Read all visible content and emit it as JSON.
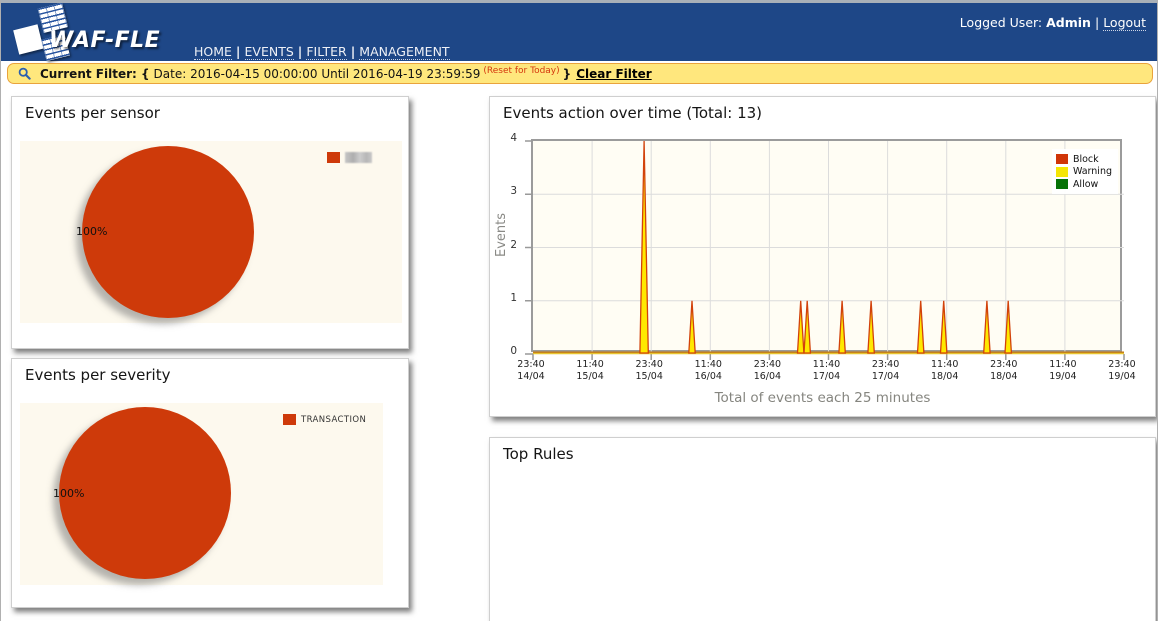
{
  "header": {
    "logo_text": "WAF-FLE",
    "nav_separator": "|",
    "nav": [
      {
        "label": "HOME"
      },
      {
        "label": "EVENTS"
      },
      {
        "label": "FILTER"
      },
      {
        "label": "MANAGEMENT"
      }
    ],
    "logged_user_label": "Logged User:",
    "logged_user_name": "Admin",
    "user_separator": "|",
    "logout_label": "Logout"
  },
  "filter_bar": {
    "icon": "search-icon",
    "prefix": "Current Filter: {",
    "date_text": "Date: 2016-04-15 00:00:00 Until 2016-04-19 23:59:59",
    "reset_note": "(Reset for Today)",
    "suffix": "}",
    "clear_label": "Clear Filter"
  },
  "panels": {
    "events_per_sensor": {
      "title": "Events per sensor",
      "percent_label": "100%",
      "legend": {
        "label": "",
        "label_censored": true,
        "color": "#ce3a0a"
      }
    },
    "events_per_severity": {
      "title": "Events per severity",
      "percent_label": "100%",
      "legend": {
        "label": "TRANSACTION",
        "color": "#ce3a0a"
      }
    },
    "events_action": {
      "title": "Events action over time (Total: 13)",
      "ylabel": "Events",
      "caption": "Total of events each 25 minutes"
    },
    "top_rules": {
      "title": "Top Rules"
    }
  },
  "colors": {
    "header_blue": "#1e4787",
    "filter_yellow": "#ffe77d",
    "filter_border_orange": "#e9a33c",
    "pie_red": "#ce3a0a",
    "block_red": "#d03508",
    "warning_yellow": "#f5e604",
    "allow_green": "#067206",
    "plot_bg_cream": "#fffdf4",
    "gridline_grey": "#dcdcdc"
  },
  "chart_data": [
    {
      "type": "pie",
      "title": "Events per sensor",
      "slices": [
        {
          "label": "",
          "label_censored": true,
          "value_pct": 100,
          "color": "#ce3a0a"
        }
      ],
      "data_label": "100%",
      "legend_position": "top-right"
    },
    {
      "type": "pie",
      "title": "Events per severity",
      "slices": [
        {
          "label": "TRANSACTION",
          "value_pct": 100,
          "color": "#ce3a0a"
        }
      ],
      "data_label": "100%",
      "legend_position": "top-right"
    },
    {
      "type": "area",
      "title": "Events action over time (Total: 13)",
      "total_events": 13,
      "ylabel": "Events",
      "xlabel_caption": "Total of events each 25 minutes",
      "ylim": [
        0,
        4
      ],
      "yticks": [
        0,
        1,
        2,
        3,
        4
      ],
      "grid": true,
      "legend_position": "top-right",
      "xticks": [
        {
          "time": "23:40",
          "date": "14/04"
        },
        {
          "time": "11:40",
          "date": "15/04"
        },
        {
          "time": "23:40",
          "date": "15/04"
        },
        {
          "time": "11:40",
          "date": "16/04"
        },
        {
          "time": "23:40",
          "date": "16/04"
        },
        {
          "time": "11:40",
          "date": "17/04"
        },
        {
          "time": "23:40",
          "date": "17/04"
        },
        {
          "time": "11:40",
          "date": "18/04"
        },
        {
          "time": "23:40",
          "date": "18/04"
        },
        {
          "time": "11:40",
          "date": "19/04"
        },
        {
          "time": "23:40",
          "date": "19/04"
        }
      ],
      "series": [
        {
          "name": "Block",
          "color": "#d03508"
        },
        {
          "name": "Warning",
          "color": "#f5e604"
        },
        {
          "name": "Allow",
          "color": "#067206"
        }
      ],
      "note": "Block (red outline) and Warning (yellow fill) spike together; Allow flat at 0",
      "spikes": [
        {
          "pos": 0.188,
          "value": 4,
          "time_estimate": "15/04 ~22:05"
        },
        {
          "pos": 0.269,
          "value": 1,
          "time_estimate": "16/04 ~07:55"
        },
        {
          "pos": 0.453,
          "value": 1,
          "time_estimate": "17/04 ~06:05"
        },
        {
          "pos": 0.464,
          "value": 1,
          "time_estimate": "17/04 ~07:20"
        },
        {
          "pos": 0.523,
          "value": 1,
          "time_estimate": "17/04 ~14:30"
        },
        {
          "pos": 0.572,
          "value": 1,
          "time_estimate": "17/04 ~20:25"
        },
        {
          "pos": 0.656,
          "value": 1,
          "time_estimate": "18/04 ~06:40"
        },
        {
          "pos": 0.695,
          "value": 1,
          "time_estimate": "18/04 ~11:20"
        },
        {
          "pos": 0.768,
          "value": 1,
          "time_estimate": "18/04 ~20:05"
        },
        {
          "pos": 0.804,
          "value": 1,
          "time_estimate": "19/04 ~00:25"
        }
      ],
      "spike_fill": "#ffe800",
      "spike_stroke": "#d2420b",
      "baseline_color": "#c1770f"
    }
  ]
}
